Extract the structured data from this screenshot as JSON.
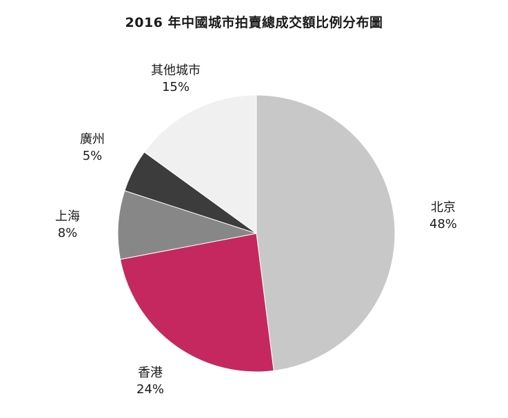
{
  "chart_data": {
    "type": "pie",
    "title": "2016 年中國城市拍賣總成交額比例分布圖",
    "series": [
      {
        "slices": [
          {
            "label": "北京",
            "value": 48,
            "value_label": "48%",
            "color": "#c8c8c8"
          },
          {
            "label": "香港",
            "value": 24,
            "value_label": "24%",
            "color": "#c4285f"
          },
          {
            "label": "上海",
            "value": 8,
            "value_label": "8%",
            "color": "#878787"
          },
          {
            "label": "廣州",
            "value": 5,
            "value_label": "5%",
            "color": "#3c3c3c"
          },
          {
            "label": "其他城市",
            "value": 15,
            "value_label": "15%",
            "color": "#f0f0f0"
          }
        ]
      }
    ],
    "start_angle": "12 o'clock",
    "direction": "clockwise"
  }
}
